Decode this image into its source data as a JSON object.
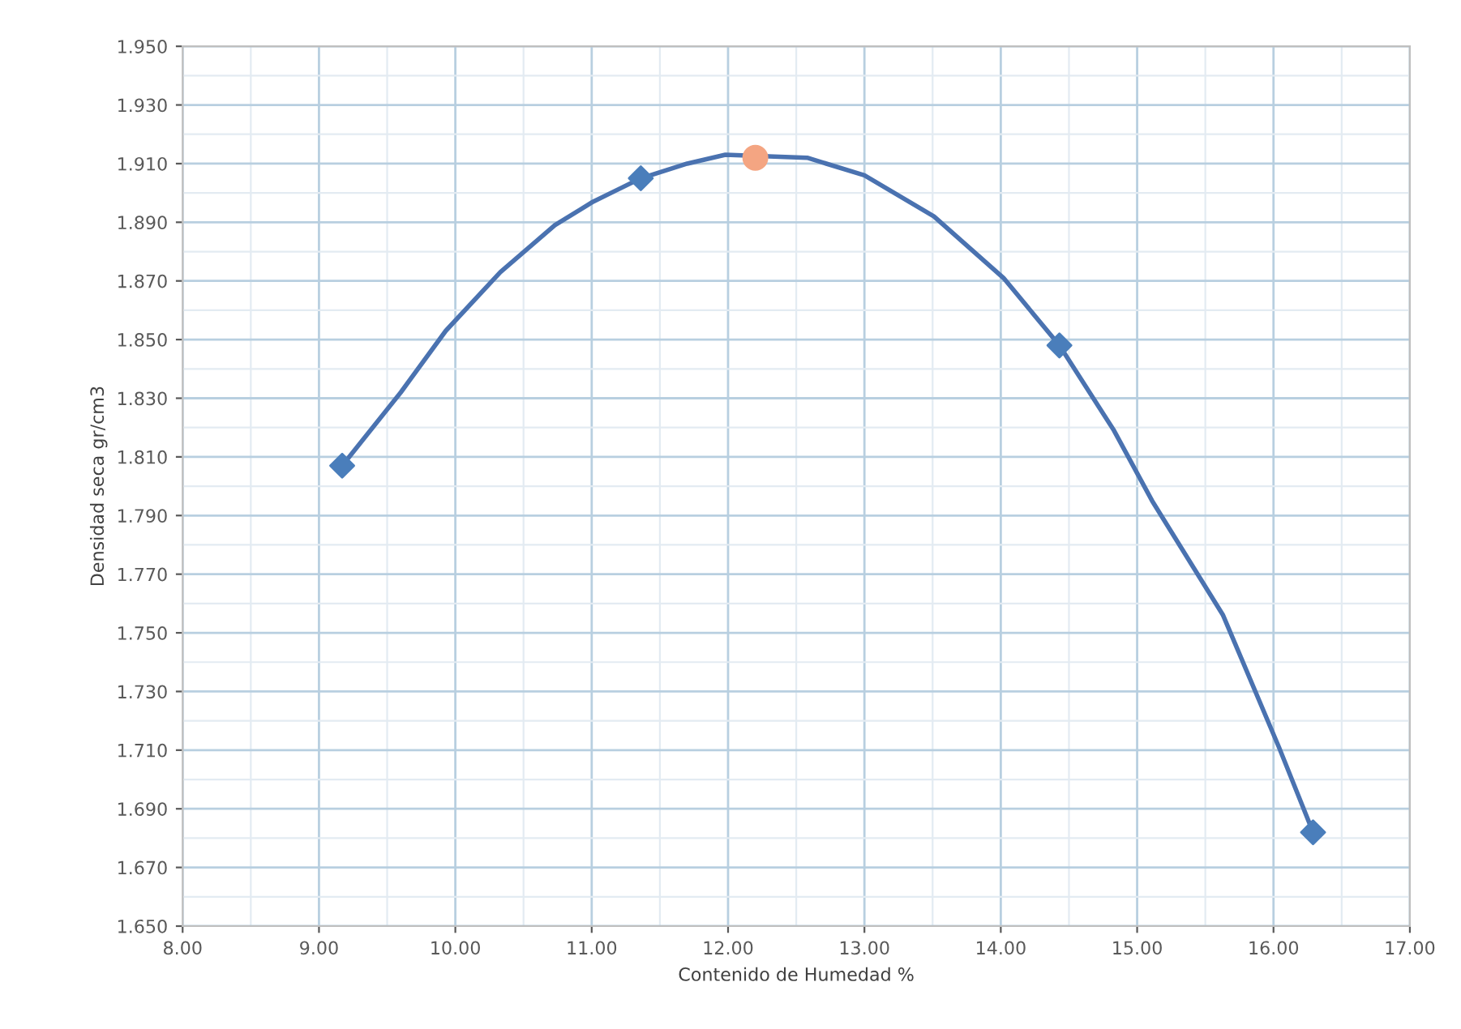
{
  "chart_data": {
    "type": "scatter",
    "xlabel": "Contenido de Humedad %",
    "ylabel": "Densidad seca gr/cm3",
    "series": [
      {
        "type": "line",
        "color": "#4a72b0",
        "marker": "none",
        "line_style": "solid",
        "x": [
          9.17,
          9.6,
          9.93,
          10.33,
          10.73,
          11.01,
          11.36,
          11.7,
          11.98,
          12.58,
          13.0,
          13.51,
          14.02,
          14.43,
          14.83,
          15.11,
          15.63,
          16.04,
          16.29
        ],
        "values": [
          1.807,
          1.832,
          1.853,
          1.873,
          1.889,
          1.897,
          1.905,
          1.91,
          1.913,
          1.912,
          1.906,
          1.892,
          1.871,
          1.848,
          1.819,
          1.795,
          1.756,
          1.711,
          1.682
        ]
      },
      {
        "color": "#4a7ebb",
        "marker": "diamond",
        "x": [
          9.17,
          11.36,
          14.43,
          16.29
        ],
        "values": [
          1.807,
          1.905,
          1.848,
          1.682
        ]
      },
      {
        "color": "#f4a582",
        "marker": "circle",
        "x": [
          12.2
        ],
        "values": [
          1.912
        ]
      }
    ],
    "xlim": [
      8,
      17
    ],
    "xticks": [
      {
        "value": 8,
        "label": "8.00"
      },
      {
        "value": 9,
        "label": "9.00"
      },
      {
        "value": 10,
        "label": "10.00"
      },
      {
        "value": 11,
        "label": "11.00"
      },
      {
        "value": 12,
        "label": "12.00"
      },
      {
        "value": 13,
        "label": "13.00"
      },
      {
        "value": 14,
        "label": "14.00"
      },
      {
        "value": 15,
        "label": "15.00"
      },
      {
        "value": 16,
        "label": "16.00"
      },
      {
        "value": 17,
        "label": "17.00"
      }
    ],
    "ylim": [
      1.65,
      1.95
    ],
    "yticks": [
      {
        "value": 1.65,
        "label": "1.650"
      },
      {
        "value": 1.67,
        "label": "1.670"
      },
      {
        "value": 1.69,
        "label": "1.690"
      },
      {
        "value": 1.71,
        "label": "1.710"
      },
      {
        "value": 1.73,
        "label": "1.730"
      },
      {
        "value": 1.75,
        "label": "1.750"
      },
      {
        "value": 1.77,
        "label": "1.770"
      },
      {
        "value": 1.79,
        "label": "1.790"
      },
      {
        "value": 1.81,
        "label": "1.810"
      },
      {
        "value": 1.83,
        "label": "1.830"
      },
      {
        "value": 1.85,
        "label": "1.850"
      },
      {
        "value": 1.87,
        "label": "1.870"
      },
      {
        "value": 1.89,
        "label": "1.890"
      },
      {
        "value": 1.91,
        "label": "1.910"
      },
      {
        "value": 1.93,
        "label": "1.930"
      },
      {
        "value": 1.95,
        "label": "1.950"
      }
    ],
    "grid": true
  }
}
